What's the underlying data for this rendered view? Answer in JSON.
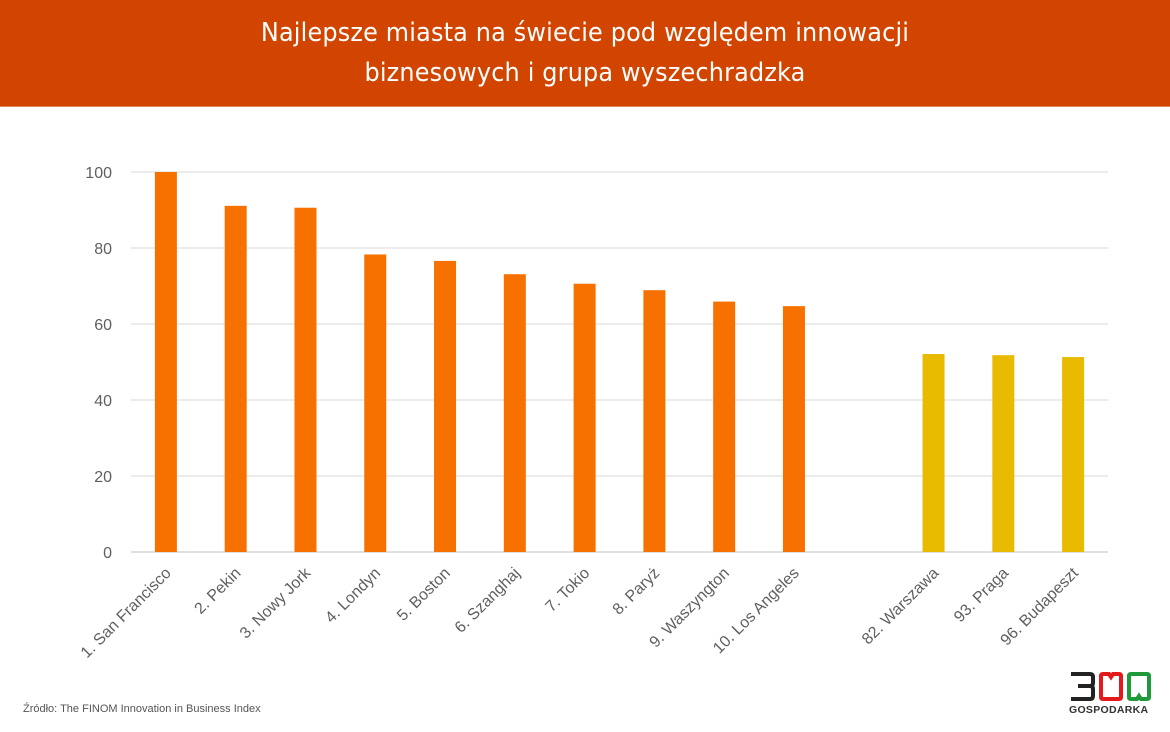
{
  "header": {
    "title_line1": "Najlepsze miasta na świecie pod względem innowacji",
    "title_line2": "biznesowych i grupa wyszechradzka",
    "background": "#d14500"
  },
  "source": "Źródło: The FINOM Innovation in Business Index",
  "logo": {
    "digits": "300",
    "text": "GOSPODARKA",
    "colors": [
      "#222222",
      "#e3191b",
      "#1f9a3a"
    ]
  },
  "chart_data": {
    "type": "bar",
    "title": "Najlepsze miasta na świecie pod względem innowacji biznesowych i grupa wyszechradzka",
    "xlabel": "",
    "ylabel": "",
    "ylim": [
      0,
      100
    ],
    "yticks": [
      0,
      20,
      40,
      60,
      80,
      100
    ],
    "grid": true,
    "legend": "none",
    "categories": [
      "1. San Francisco",
      "2. Pekin",
      "3. Nowy Jork",
      "4. Londyn",
      "5. Boston",
      "6. Szanghaj",
      "7. Tokio",
      "8. Paryż",
      "9. Waszyngton",
      "10. Los Angeles",
      "",
      "82. Warszawa",
      "93. Praga",
      "96. Budapeszt"
    ],
    "values": [
      100,
      91.1,
      90.6,
      78.3,
      76.6,
      73.1,
      70.6,
      68.9,
      65.9,
      64.7,
      null,
      52.1,
      51.8,
      51.3
    ],
    "groups": [
      "top10",
      "top10",
      "top10",
      "top10",
      "top10",
      "top10",
      "top10",
      "top10",
      "top10",
      "top10",
      "gap",
      "v4",
      "v4",
      "v4"
    ],
    "colors": {
      "top10": "#f77100",
      "v4": "#e8bb00"
    },
    "label_rotation_deg": -45
  }
}
